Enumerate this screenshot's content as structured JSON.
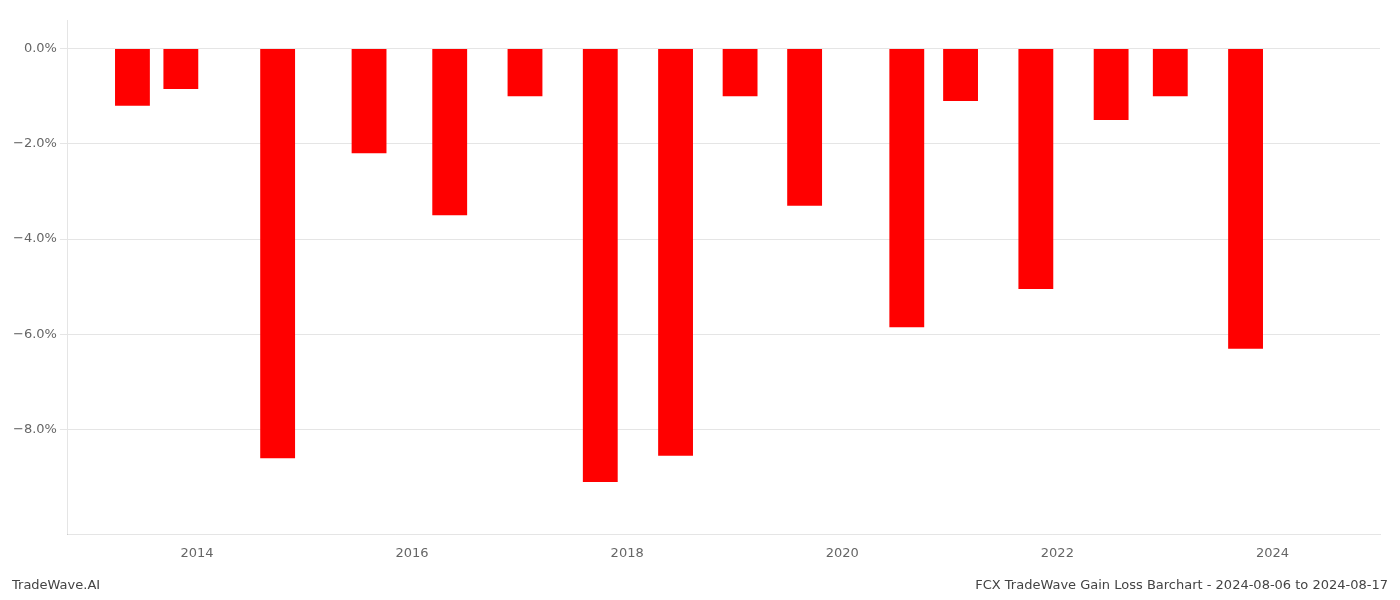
{
  "chart_data": {
    "type": "bar",
    "x": [
      2013.4,
      2013.85,
      2014.75,
      2015.6,
      2016.35,
      2017.05,
      2017.75,
      2018.45,
      2019.05,
      2019.65,
      2020.6,
      2021.1,
      2021.8,
      2022.5,
      2023.05,
      2023.75
    ],
    "values": [
      -1.2,
      -0.85,
      -8.6,
      -2.2,
      -3.5,
      -1.0,
      -9.1,
      -8.55,
      -1.0,
      -3.3,
      -5.85,
      -1.1,
      -5.05,
      -1.5,
      -1.0,
      -6.3
    ],
    "color": "#ff0000",
    "xlim": [
      2012.8,
      2025.0
    ],
    "xticks": [
      2014,
      2016,
      2018,
      2020,
      2022,
      2024
    ],
    "ylim": [
      -10.2,
      0.6
    ],
    "yticks": [
      {
        "value": 0.0,
        "label": "0.0%"
      },
      {
        "value": -2.0,
        "label": "−2.0%"
      },
      {
        "value": -4.0,
        "label": "−4.0%"
      },
      {
        "value": -6.0,
        "label": "−6.0%"
      },
      {
        "value": -8.0,
        "label": "−8.0%"
      }
    ],
    "grid": true,
    "annotations": [
      "TradeWave.AI",
      "FCX TradeWave Gain Loss Barchart - 2024-08-06 to 2024-08-17"
    ]
  }
}
